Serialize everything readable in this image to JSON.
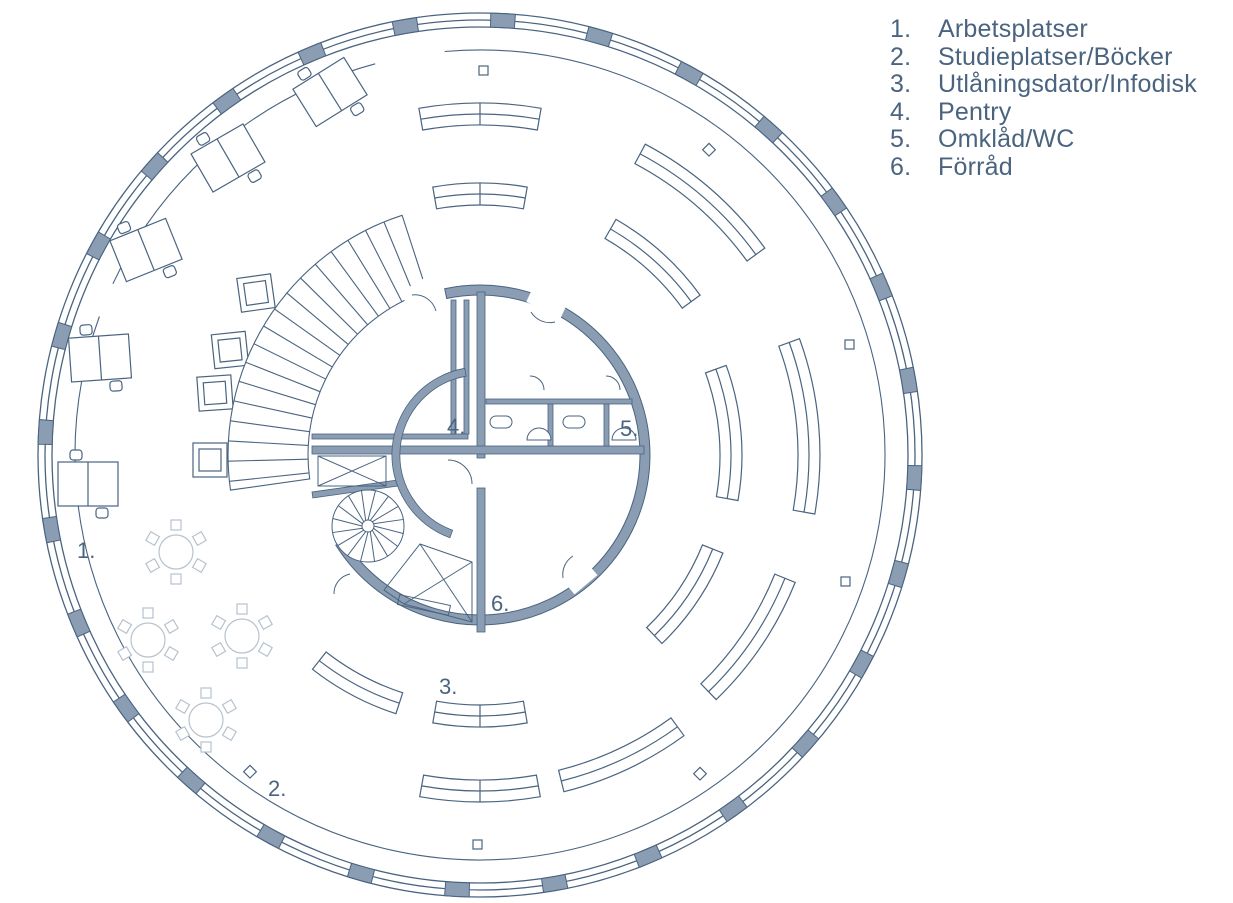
{
  "legend": [
    {
      "number": "1.",
      "text": "Arbetsplatser"
    },
    {
      "number": "2.",
      "text": "Studieplatser/Böcker"
    },
    {
      "number": "3.",
      "text": "Utlåningsdator/Infodisk"
    },
    {
      "number": "4.",
      "text": "Pentry"
    },
    {
      "number": "5.",
      "text": "Omklåd/WC"
    },
    {
      "number": "6.",
      "text": "Förråd"
    }
  ],
  "plan_labels": {
    "area_1": "1.",
    "area_2": "2.",
    "area_3": "3.",
    "area_4": "4.",
    "area_5": "5.",
    "area_6": "6."
  },
  "colors": {
    "line": "#4a6480",
    "wall_fill": "#8a9db3",
    "window_fill": "#a9b8c8",
    "furniture_light": "#b7c2cd"
  }
}
